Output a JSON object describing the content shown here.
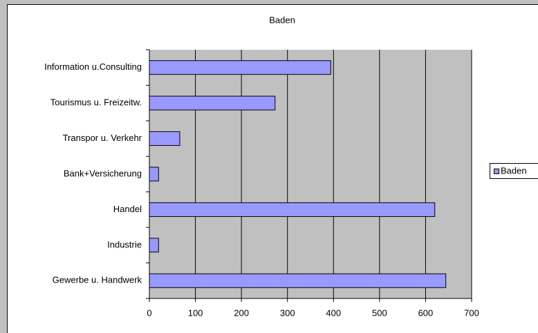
{
  "chart_data": {
    "type": "bar",
    "orientation": "horizontal",
    "title": "Baden",
    "categories": [
      "Information u.Consulting",
      "Tourismus u. Freizeitw.",
      "Transpor u. Verkehr",
      "Bank+Versicherung",
      "Handel",
      "Industrie",
      "Gewerbe u. Handwerk"
    ],
    "series": [
      {
        "name": "Baden",
        "color": "#9999ff",
        "values": [
          394,
          273,
          66,
          20,
          620,
          20,
          644
        ]
      }
    ],
    "xlim": [
      0,
      700
    ],
    "xticks": [
      0,
      100,
      200,
      300,
      400,
      500,
      600,
      700
    ],
    "grid": true,
    "legend": "right"
  }
}
